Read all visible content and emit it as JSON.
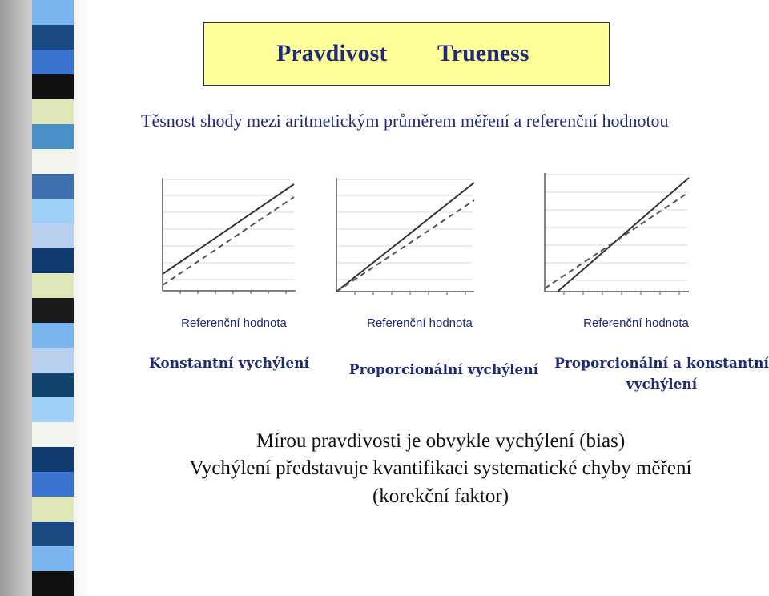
{
  "slide": {
    "title_cz": "Pravdivost",
    "title_en": "Trueness",
    "subtitle": "Těsnost shody mezi aritmetickým průměrem měření a referenční hodnotou",
    "charts": [
      {
        "xlabel": "Referenční hodnota",
        "caption": "Konstantní vychýlení"
      },
      {
        "xlabel": "Referenční hodnota",
        "caption": "Proporcionální vychýlení"
      },
      {
        "xlabel": "Referenční hodnota",
        "caption": "Proporcionální a konstantní vychýlení"
      }
    ],
    "body": [
      "Mírou pravdivosti je obvykle vychýlení (bias)",
      "Vychýlení představuje kvantifikaci systematické chyby měření",
      "(korekční faktor)"
    ]
  },
  "decoration": {
    "stripe_colors": [
      "#7ab5f0",
      "#1b4a82",
      "#3a74d0",
      "#111111",
      "#dfe6b8",
      "#4a90c8",
      "#f4f4ee",
      "#3e6fae",
      "#9fd0f5",
      "#b8d0ee",
      "#0f3b6e",
      "#dfe6b8",
      "#1a1a1a",
      "#7ab5f0",
      "#b8d0ee",
      "#12426e",
      "#9fd0f5",
      "#f4f4ee",
      "#0f3b6e",
      "#3a74d0",
      "#dfe6b8",
      "#1b4a82",
      "#7ab5f0",
      "#111111"
    ],
    "text_color": "#1f2a78",
    "title_bg": "#ffff99"
  }
}
